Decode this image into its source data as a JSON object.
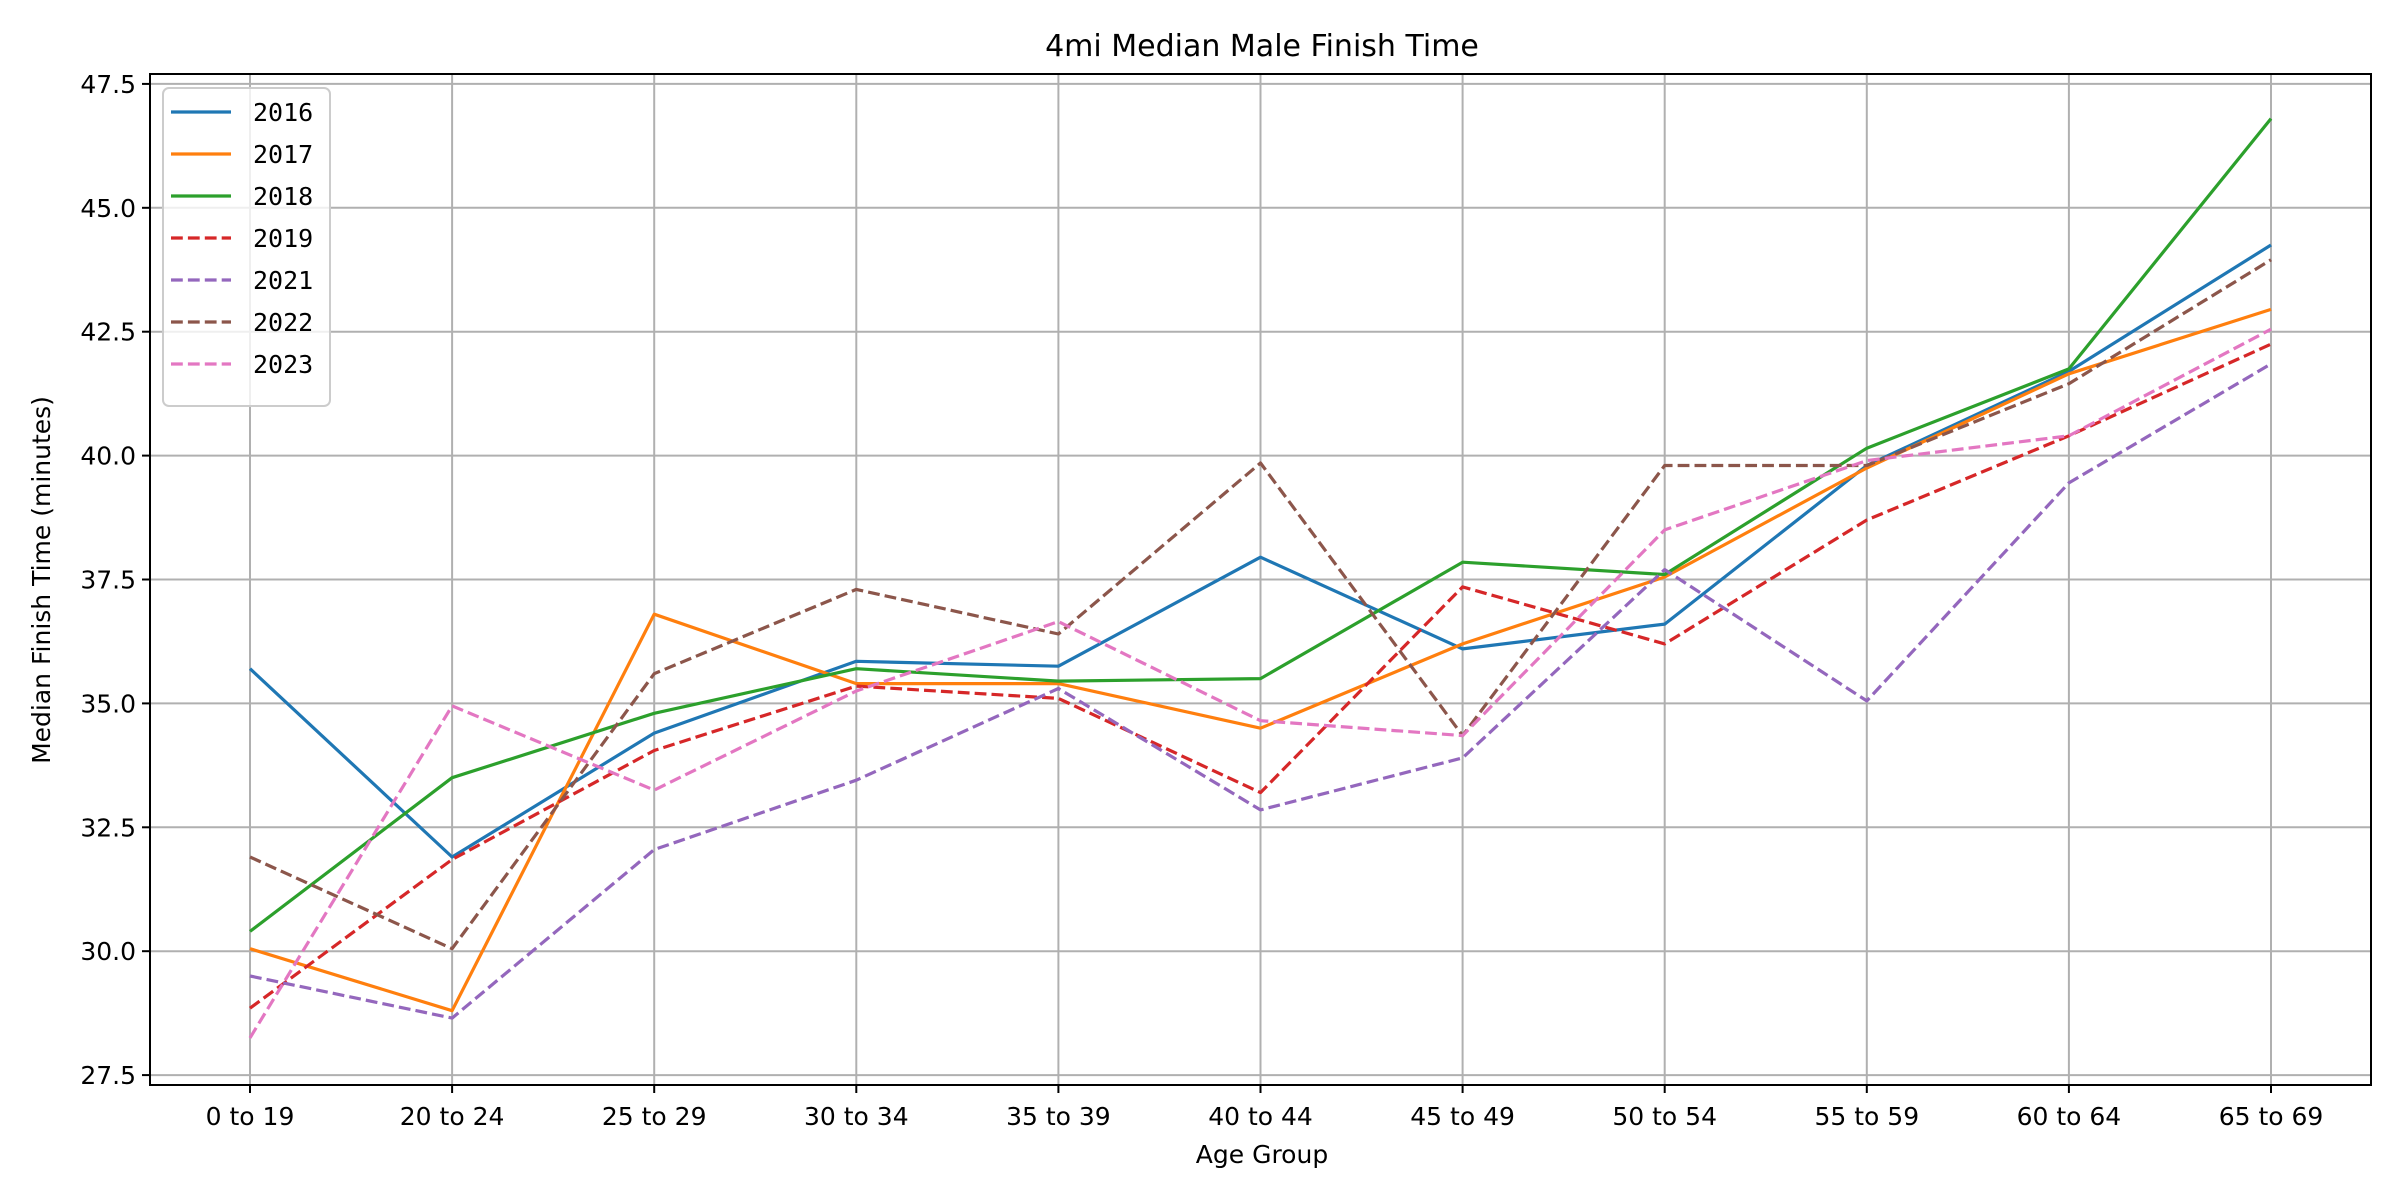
{
  "chart_data": {
    "type": "line",
    "title": "4mi Median Male Finish Time",
    "xlabel": "Age Group",
    "ylabel": "Median Finish Time (minutes)",
    "categories": [
      "0 to 19",
      "20 to 24",
      "25 to 29",
      "30 to 34",
      "35 to 39",
      "40 to 44",
      "45 to 49",
      "50 to 54",
      "55 to 59",
      "60 to 64",
      "65 to 69"
    ],
    "ylim": [
      27.3,
      47.7
    ],
    "yticks": [
      "27.5",
      "30.0",
      "32.5",
      "35.0",
      "37.5",
      "40.0",
      "42.5",
      "45.0",
      "47.5"
    ],
    "grid": true,
    "legend_position": "upper-left",
    "series": [
      {
        "name": "2016",
        "color": "#1f77b4",
        "dash": "solid",
        "values": [
          35.7,
          31.9,
          34.4,
          35.85,
          35.75,
          37.95,
          36.1,
          36.6,
          39.8,
          41.7,
          44.25
        ]
      },
      {
        "name": "2017",
        "color": "#ff7f0e",
        "dash": "solid",
        "values": [
          30.05,
          28.8,
          36.8,
          35.4,
          35.4,
          34.5,
          36.2,
          37.55,
          39.75,
          41.65,
          42.95
        ]
      },
      {
        "name": "2018",
        "color": "#2ca02c",
        "dash": "solid",
        "values": [
          30.4,
          33.5,
          34.8,
          35.7,
          35.45,
          35.5,
          37.85,
          37.6,
          40.15,
          41.75,
          46.8
        ]
      },
      {
        "name": "2019",
        "color": "#d62728",
        "dash": "dashed",
        "values": [
          28.85,
          31.85,
          34.05,
          35.35,
          35.1,
          33.2,
          37.35,
          36.2,
          38.7,
          40.4,
          42.25
        ]
      },
      {
        "name": "2021",
        "color": "#9467bd",
        "dash": "dashed",
        "values": [
          29.5,
          28.65,
          32.05,
          33.45,
          35.3,
          32.85,
          33.9,
          37.7,
          35.05,
          39.45,
          41.85
        ]
      },
      {
        "name": "2022",
        "color": "#8c564b",
        "dash": "dashed",
        "values": [
          31.9,
          30.05,
          35.6,
          37.3,
          36.4,
          39.85,
          34.35,
          39.8,
          39.8,
          41.45,
          43.95
        ]
      },
      {
        "name": "2023",
        "color": "#e377c2",
        "dash": "dashed",
        "values": [
          28.25,
          34.95,
          33.25,
          35.25,
          36.65,
          34.65,
          34.35,
          38.5,
          39.9,
          40.4,
          42.55
        ]
      }
    ]
  }
}
